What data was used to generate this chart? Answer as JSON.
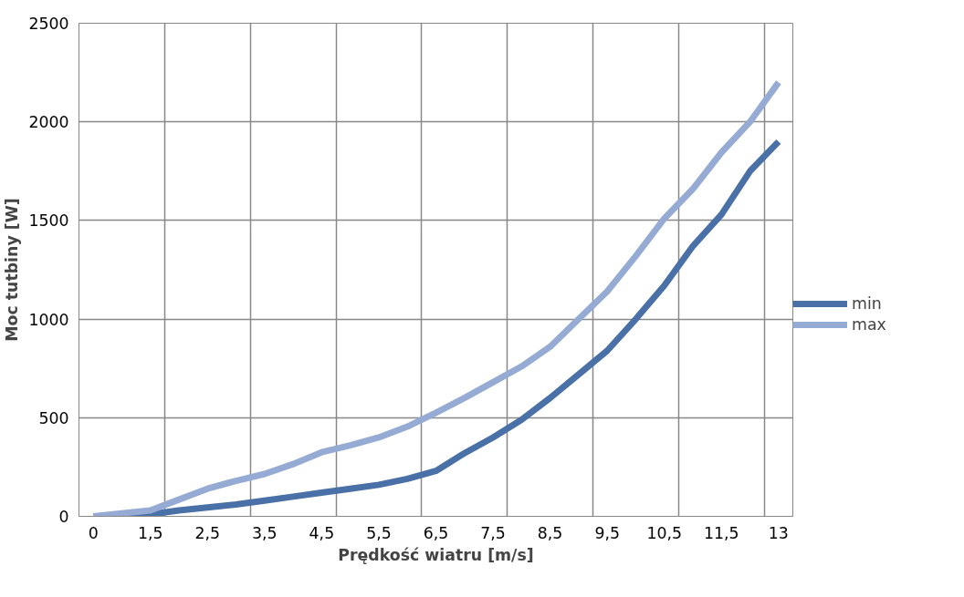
{
  "chart_data": {
    "type": "line",
    "xlabel": "Prędkość wiatru [m/s]",
    "ylabel": "Moc tutbiny [W]",
    "categories": [
      "0",
      null,
      "1,5",
      null,
      "2,5",
      null,
      "3,5",
      null,
      "4,5",
      null,
      "5,5",
      null,
      "6,5",
      null,
      "7,5",
      null,
      "8,5",
      null,
      "9,5",
      null,
      "10,5",
      null,
      "11,5",
      null,
      "13"
    ],
    "series": [
      {
        "name": "min",
        "color": "#4a70a8",
        "values": [
          0,
          0,
          10,
          30,
          45,
          60,
          80,
          100,
          120,
          140,
          160,
          190,
          230,
          320,
          400,
          490,
          600,
          720,
          840,
          1000,
          1170,
          1370,
          1530,
          1750,
          1900
        ]
      },
      {
        "name": "max",
        "color": "#95abd4",
        "values": [
          0,
          15,
          30,
          85,
          140,
          180,
          215,
          265,
          325,
          360,
          400,
          455,
          525,
          600,
          680,
          760,
          860,
          1000,
          1140,
          1320,
          1510,
          1660,
          1845,
          2000,
          2200
        ]
      }
    ],
    "ylim": [
      0,
      2500
    ],
    "yticks": [
      0,
      500,
      1000,
      1500,
      2000,
      2500
    ],
    "grid": true,
    "legend": "right",
    "marker": "none",
    "line_style": "solid"
  }
}
